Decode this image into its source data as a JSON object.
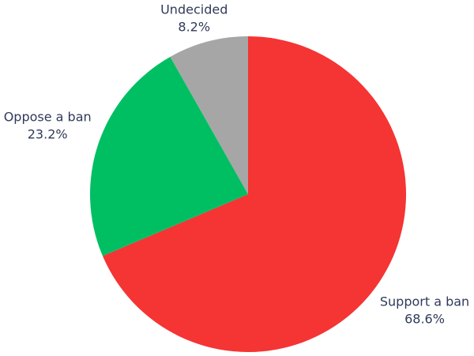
{
  "chart_data": {
    "type": "pie",
    "categories": [
      "Support a ban",
      "Oppose a ban",
      "Undecided"
    ],
    "values": [
      68.6,
      23.2,
      8.2
    ],
    "value_labels": [
      "68.6%",
      "23.2%",
      "8.2%"
    ],
    "colors": [
      "#f53434",
      "#00bf63",
      "#a6a6a6"
    ]
  }
}
